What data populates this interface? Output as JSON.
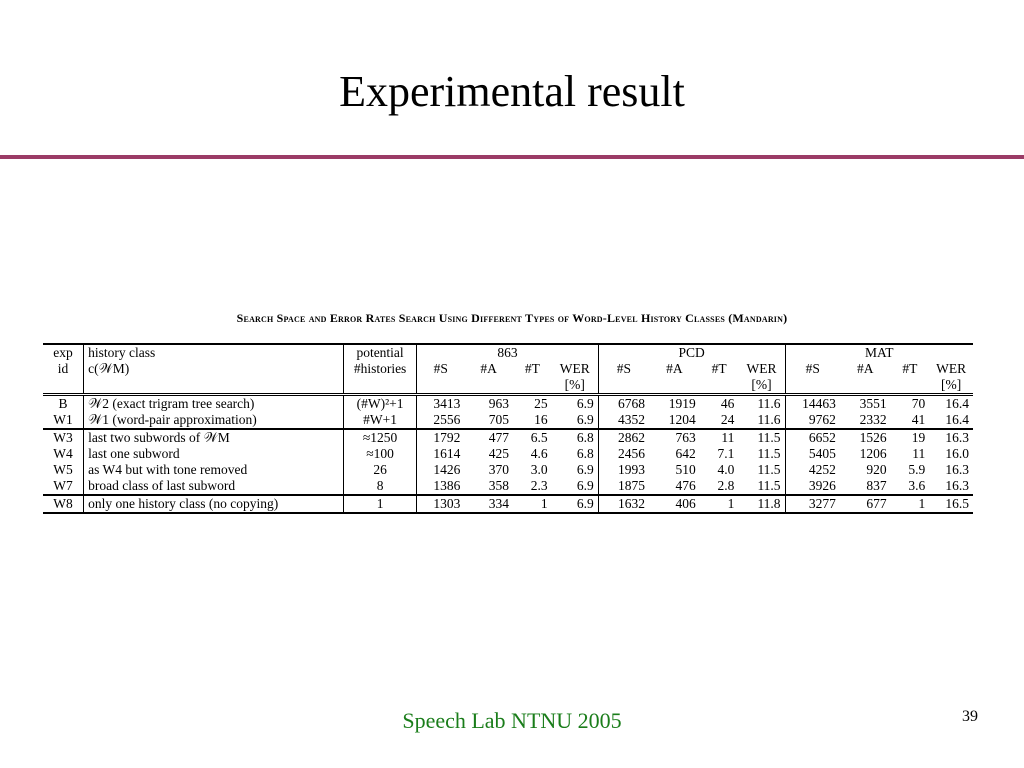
{
  "slide": {
    "title": "Experimental result",
    "footer": "Speech Lab NTNU 2005",
    "page_number": "39",
    "accent_color": "#9b3b66",
    "footer_color": "#1a7d1a"
  },
  "table": {
    "caption": "Search Space and Error Rates Search Using Different Types of Word-Level History Classes (Mandarin)",
    "head": {
      "exp_1": "exp",
      "exp_2": "id",
      "hist_1": "history class",
      "hist_2": "c(𝒲M)",
      "pot_1": "potential",
      "pot_2": "#histories",
      "group_863": "863",
      "group_pcd": "PCD",
      "group_mat": "MAT",
      "s": "#S",
      "a": "#A",
      "t": "#T",
      "wer_1": "WER",
      "wer_2": "[%]"
    },
    "rows": [
      {
        "id": "B",
        "history": "𝒲2 (exact trigram tree search)",
        "potential": "(#W)²+1",
        "v": [
          "3413",
          "963",
          "25",
          "6.9",
          "6768",
          "1919",
          "46",
          "11.6",
          "14463",
          "3551",
          "70",
          "16.4"
        ]
      },
      {
        "id": "W1",
        "history": "𝒲1 (word-pair approximation)",
        "potential": "#W+1",
        "v": [
          "2556",
          "705",
          "16",
          "6.9",
          "4352",
          "1204",
          "24",
          "11.6",
          "9762",
          "2332",
          "41",
          "16.4"
        ]
      },
      {
        "id": "W3",
        "history": "last two subwords of 𝒲M",
        "potential": "≈1250",
        "v": [
          "1792",
          "477",
          "6.5",
          "6.8",
          "2862",
          "763",
          "11",
          "11.5",
          "6652",
          "1526",
          "19",
          "16.3"
        ]
      },
      {
        "id": "W4",
        "history": "last one subword",
        "potential": "≈100",
        "v": [
          "1614",
          "425",
          "4.6",
          "6.8",
          "2456",
          "642",
          "7.1",
          "11.5",
          "5405",
          "1206",
          "11",
          "16.0"
        ]
      },
      {
        "id": "W5",
        "history": "as W4 but with tone removed",
        "potential": "26",
        "v": [
          "1426",
          "370",
          "3.0",
          "6.9",
          "1993",
          "510",
          "4.0",
          "11.5",
          "4252",
          "920",
          "5.9",
          "16.3"
        ]
      },
      {
        "id": "W7",
        "history": "broad class of last subword",
        "potential": "8",
        "v": [
          "1386",
          "358",
          "2.3",
          "6.9",
          "1875",
          "476",
          "2.8",
          "11.5",
          "3926",
          "837",
          "3.6",
          "16.3"
        ]
      },
      {
        "id": "W8",
        "history": "only one history class (no copying)",
        "potential": "1",
        "v": [
          "1303",
          "334",
          "1",
          "6.9",
          "1632",
          "406",
          "1",
          "11.8",
          "3277",
          "677",
          "1",
          "16.5"
        ]
      }
    ]
  }
}
